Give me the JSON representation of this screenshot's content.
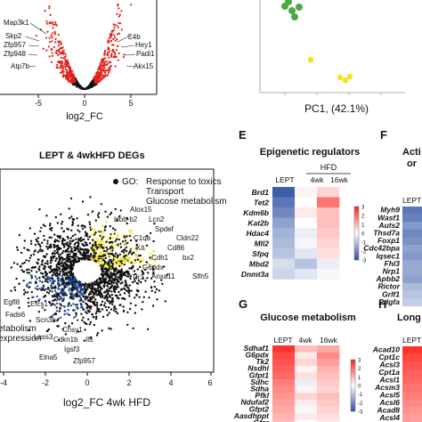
{
  "panel_b_top": {
    "genes": [
      "Map3k1",
      "Skp2",
      "Zfp957",
      "Zfp948",
      "Atp7b",
      "C4b",
      "Hey1",
      "Padi1",
      "Akx15"
    ],
    "xlabel": "log2_FC",
    "xticks": [
      "-5",
      "0",
      "5"
    ],
    "colors": {
      "sig": "#e2231a",
      "ns": "#111111"
    }
  },
  "panel_pca": {
    "xlabel": "PC1, (42.1%)",
    "colors": {
      "green": "#4aa845",
      "yellow": "#f3e317"
    }
  },
  "panel_scatter": {
    "title": "LEPT & 4wkHFD DEGs",
    "go": {
      "heading": "GO:",
      "terms": [
        "Response to toxics",
        "Transport",
        "Glucose metabolism"
      ],
      "partial_left": [
        "etabolism",
        "expression"
      ]
    },
    "xlabel": "log2_FC 4wk HFD",
    "xticks": [
      "-4",
      "-2",
      "0",
      "2",
      "4",
      "6"
    ],
    "genes_up": [
      "Alox15",
      "Hbb-b2",
      "Lcn2",
      "Spdef",
      "C1qa",
      "Cldn22",
      "Kit",
      "Cd86",
      "Cdh1",
      "bx2",
      "G6pdx",
      "Anxa11",
      "Slfn5",
      "Tlr3"
    ],
    "genes_down": [
      "Egfl8",
      "Efcs1",
      "Fads6",
      "Scn3b",
      "Chsy1",
      "Lass3",
      "Cdkn1b",
      "Il5",
      "Igsf3",
      "Elna5",
      "Zfp957"
    ],
    "colors": {
      "yellow": "#f3e61c",
      "blue": "#1f4e9c",
      "black": "#111111"
    }
  },
  "panel_e": {
    "letter": "E",
    "title": "Epigenetic regulators",
    "group_label": "HFD",
    "columns": [
      "LEPT",
      "4wk",
      "16wk"
    ],
    "rows": [
      "Brd1",
      "Tet2",
      "Kdm6b",
      "Kat2b",
      "Hdac4",
      "Mll2",
      "Sfpq",
      "Mbd2",
      "Dnmt3a"
    ],
    "values": [
      [
        -0.95,
        0.05,
        0.2
      ],
      [
        -0.8,
        0.0,
        0.65
      ],
      [
        -0.7,
        0.1,
        0.3
      ],
      [
        -0.55,
        0.0,
        0.3
      ],
      [
        -0.45,
        -0.1,
        0.25
      ],
      [
        -0.4,
        -0.05,
        0.2
      ],
      [
        -0.35,
        -0.15,
        0.15
      ],
      [
        -0.2,
        -0.35,
        -0.1
      ],
      [
        -0.25,
        -0.15,
        -0.05
      ]
    ],
    "scale_ticks": [
      "3",
      "2",
      "1",
      "0",
      "-1",
      "-2",
      "-3"
    ]
  },
  "panel_f": {
    "letter": "F",
    "title_partial": [
      "Acti",
      "or"
    ],
    "column_partial": "LEPT",
    "rows": [
      "Myh9",
      "Wasf1",
      "Auts2",
      "Thsd7a",
      "Foxp1",
      "Cdc42bpa",
      "Iqsec1",
      "Fhl3",
      "Nrp1",
      "Apbb2",
      "Rictor",
      "Grlf1",
      "Pdgfa"
    ],
    "values": [
      -0.8,
      -0.75,
      -0.6,
      -0.7,
      -0.65,
      -0.55,
      -0.6,
      -0.5,
      -0.5,
      -0.55,
      -0.4,
      -0.35,
      -0.3
    ]
  },
  "panel_g": {
    "letter": "G",
    "title": "Glucose metabolism",
    "columns": [
      "LEPT",
      "4wk",
      "16wk"
    ],
    "rows": [
      "Sdhaf1",
      "G6pdx",
      "Tk2",
      "Nsdhl",
      "Gfpt1",
      "Sdhc",
      "Sdha",
      "Pfkl",
      "Ndufaf2",
      "Gfpt2",
      "Aasdhppt",
      "Gfer"
    ],
    "values": [
      [
        0.95,
        0.3,
        0.4
      ],
      [
        0.85,
        0.1,
        0.55
      ],
      [
        0.8,
        0.2,
        0.45
      ],
      [
        0.75,
        0.05,
        0.35
      ],
      [
        0.7,
        0.15,
        0.3
      ],
      [
        0.6,
        -0.1,
        0.25
      ],
      [
        0.55,
        0.05,
        0.2
      ],
      [
        0.5,
        0.2,
        0.3
      ],
      [
        0.45,
        0.1,
        0.25
      ],
      [
        0.4,
        -0.05,
        0.2
      ],
      [
        0.35,
        0.1,
        0.15
      ],
      [
        0.3,
        0.0,
        0.1
      ]
    ],
    "scale_ticks": [
      "3",
      "2",
      "1",
      "0",
      "-1",
      "-2",
      "-3"
    ]
  },
  "panel_h": {
    "letter": "H",
    "title_partial": "Long ch",
    "column_partial": "LEPT",
    "rows": [
      "Acad10",
      "Cpt1c",
      "Acsl3",
      "Cpt1a",
      "Acsl1",
      "Acsm3",
      "Acsl5",
      "Acsl6",
      "Acad8",
      "Acsl4"
    ],
    "values": [
      0.95,
      0.85,
      0.8,
      0.75,
      0.7,
      0.65,
      0.6,
      0.55,
      0.5,
      0.45
    ]
  }
}
